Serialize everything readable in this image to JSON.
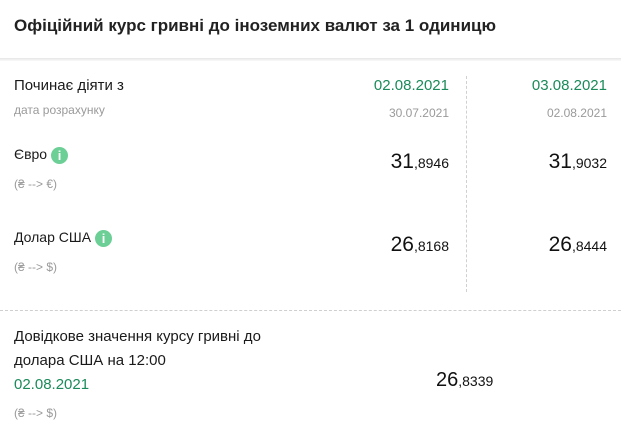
{
  "title": "Офіційний курс гривні до іноземних валют за 1 одиницю",
  "header_row": {
    "label": "Починає діяти з",
    "sublabel": "дата розрахунку",
    "columns": [
      {
        "date": "02.08.2021",
        "calc_date": "30.07.2021"
      },
      {
        "date": "03.08.2021",
        "calc_date": "02.08.2021"
      }
    ]
  },
  "currencies": [
    {
      "name": "Євро",
      "direction": "(₴ --> €)",
      "values": [
        {
          "int": "31",
          "frac": ",8946"
        },
        {
          "int": "31",
          "frac": ",9032"
        }
      ]
    },
    {
      "name": "Долар США",
      "direction": "(₴ --> $)",
      "values": [
        {
          "int": "26",
          "frac": ",8168"
        },
        {
          "int": "26",
          "frac": ",8444"
        }
      ]
    }
  ],
  "reference": {
    "line1": "Довідкове значення курсу гривні до",
    "line2": "долара США на 12:00",
    "date": "02.08.2021",
    "direction": "(₴ --> $)",
    "value": {
      "int": "26",
      "frac": ",8339"
    }
  },
  "colors": {
    "accent": "#1b8a5a",
    "info": "#6ccf96"
  }
}
